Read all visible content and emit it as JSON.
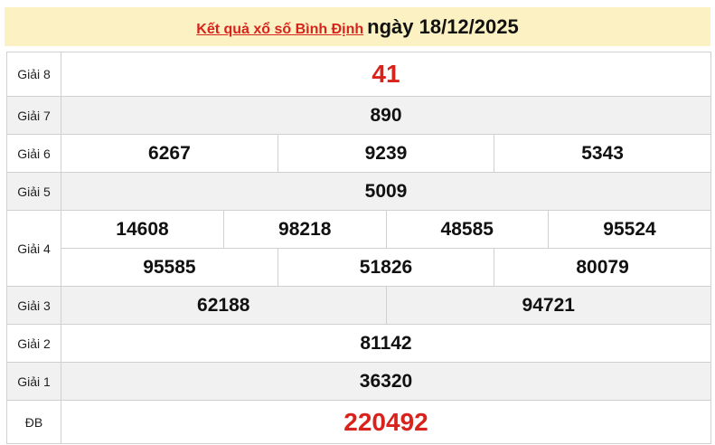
{
  "header": {
    "link": "Kết quả xổ số Bình Định",
    "date": "ngày 18/12/2025"
  },
  "prizes": [
    {
      "label": "Giải 8",
      "numbers": [
        "41"
      ]
    },
    {
      "label": "Giải 7",
      "numbers": [
        "890"
      ]
    },
    {
      "label": "Giải 6",
      "numbers": [
        "6267",
        "9239",
        "5343"
      ]
    },
    {
      "label": "Giải 5",
      "numbers": [
        "5009"
      ]
    },
    {
      "label": "Giải 4",
      "numbers": [
        "14608",
        "98218",
        "48585",
        "95524",
        "95585",
        "51826",
        "80079"
      ]
    },
    {
      "label": "Giải 3",
      "numbers": [
        "62188",
        "94721"
      ]
    },
    {
      "label": "Giải 2",
      "numbers": [
        "81142"
      ]
    },
    {
      "label": "Giải 1",
      "numbers": [
        "36320"
      ]
    },
    {
      "label": "ĐB",
      "numbers": [
        "220492"
      ]
    }
  ],
  "colors": {
    "accent": "#d8231c",
    "header_bg": "#fbf1c2",
    "alt_row": "#f1f1f1"
  }
}
